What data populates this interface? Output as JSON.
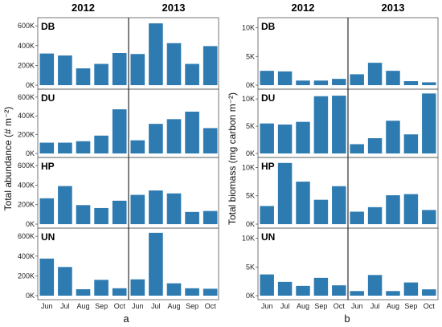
{
  "chart_data": [
    {
      "type": "bar",
      "panel_label": "a",
      "ylabel": "Total abundance (# m⁻²)",
      "years": [
        "2012",
        "2013"
      ],
      "months": [
        "Jun",
        "Jul",
        "Aug",
        "Sep",
        "Oct"
      ],
      "ylim": [
        0,
        650000
      ],
      "yticks": [
        0,
        200000,
        400000,
        600000
      ],
      "ytick_labels": [
        "0K",
        "200K",
        "400K",
        "600K"
      ],
      "color": "#2e7bb1",
      "grid": false,
      "rows": [
        {
          "site": "DB",
          "values_2012": [
            320000,
            300000,
            170000,
            215000,
            325000
          ],
          "values_2013": [
            315000,
            625000,
            425000,
            215000,
            395000
          ]
        },
        {
          "site": "DU",
          "values_2012": [
            115000,
            115000,
            130000,
            190000,
            470000
          ],
          "values_2013": [
            140000,
            315000,
            365000,
            445000,
            270000
          ]
        },
        {
          "site": "HP",
          "values_2012": [
            265000,
            390000,
            195000,
            165000,
            240000
          ],
          "values_2013": [
            300000,
            345000,
            315000,
            125000,
            135000
          ]
        },
        {
          "site": "UN",
          "values_2012": [
            375000,
            290000,
            65000,
            160000,
            75000
          ],
          "values_2013": [
            165000,
            635000,
            125000,
            75000,
            70000
          ]
        }
      ]
    },
    {
      "type": "bar",
      "panel_label": "b",
      "ylabel": "Total biomass (mg carbon m⁻²)",
      "years": [
        "2012",
        "2013"
      ],
      "months": [
        "Jun",
        "Jul",
        "Aug",
        "Sep",
        "Oct"
      ],
      "ylim": [
        0,
        11200
      ],
      "yticks": [
        0,
        5000,
        10000
      ],
      "ytick_labels": [
        "0K",
        "5K",
        "10K"
      ],
      "color": "#2e7bb1",
      "grid": false,
      "rows": [
        {
          "site": "DB",
          "values_2012": [
            2500,
            2400,
            800,
            800,
            1100
          ],
          "values_2013": [
            1900,
            3900,
            2500,
            700,
            500
          ]
        },
        {
          "site": "DU",
          "values_2012": [
            5500,
            5300,
            5800,
            10500,
            10600
          ],
          "values_2013": [
            1700,
            2800,
            6000,
            3500,
            11000
          ]
        },
        {
          "site": "HP",
          "values_2012": [
            3200,
            10800,
            7500,
            4300,
            6700
          ],
          "values_2013": [
            2200,
            3000,
            5100,
            5300,
            2500
          ]
        },
        {
          "site": "UN",
          "values_2012": [
            3700,
            2400,
            1700,
            3100,
            1800
          ],
          "values_2013": [
            800,
            3600,
            800,
            2300,
            1100
          ]
        }
      ]
    }
  ]
}
